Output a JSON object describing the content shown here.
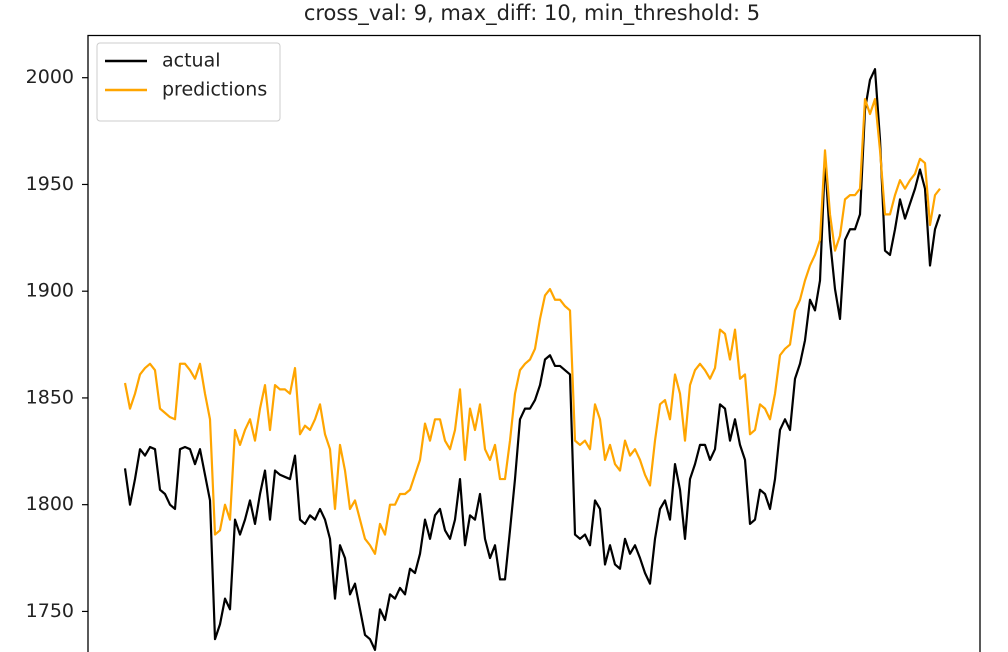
{
  "chart_data": {
    "type": "line",
    "title": "cross_val: 9, max_diff: 10, min_threshold: 5",
    "series": [
      {
        "name": "actual",
        "color": "#000000",
        "values": [
          1817,
          1800,
          1812,
          1826,
          1823,
          1827,
          1826,
          1807,
          1805,
          1800,
          1798,
          1826,
          1827,
          1826,
          1819,
          1826,
          1814,
          1802,
          1737,
          1744,
          1756,
          1751,
          1793,
          1786,
          1793,
          1802,
          1791,
          1805,
          1816,
          1793,
          1816,
          1814,
          1813,
          1812,
          1823,
          1793,
          1791,
          1795,
          1793,
          1798,
          1793,
          1784,
          1756,
          1781,
          1775,
          1758,
          1763,
          1751,
          1739,
          1737,
          1732,
          1751,
          1746,
          1758,
          1756,
          1761,
          1758,
          1770,
          1768,
          1777,
          1793,
          1784,
          1795,
          1798,
          1788,
          1784,
          1793,
          1812,
          1781,
          1795,
          1793,
          1805,
          1784,
          1775,
          1781,
          1765,
          1765,
          1788,
          1812,
          1840,
          1845,
          1845,
          1849,
          1856,
          1868,
          1870,
          1865,
          1865,
          1863,
          1861,
          1786,
          1784,
          1786,
          1781,
          1802,
          1798,
          1772,
          1781,
          1772,
          1770,
          1784,
          1777,
          1781,
          1775,
          1768,
          1763,
          1784,
          1798,
          1802,
          1793,
          1819,
          1807,
          1784,
          1812,
          1819,
          1828,
          1828,
          1821,
          1826,
          1847,
          1845,
          1830,
          1840,
          1828,
          1821,
          1791,
          1793,
          1807,
          1805,
          1798,
          1812,
          1835,
          1840,
          1835,
          1859,
          1866,
          1877,
          1896,
          1891,
          1905,
          1962,
          1924,
          1901,
          1887,
          1924,
          1929,
          1929,
          1936,
          1985,
          1999,
          2004,
          1971,
          1919,
          1917,
          1929,
          1943,
          1934,
          1941,
          1948,
          1957,
          1948,
          1912,
          1929,
          1936
        ]
      },
      {
        "name": "predictions",
        "color": "orange",
        "values": [
          1857,
          1845,
          1852,
          1861,
          1864,
          1866,
          1863,
          1845,
          1843,
          1841,
          1840,
          1866,
          1866,
          1863,
          1859,
          1866,
          1852,
          1840,
          1786,
          1788,
          1800,
          1793,
          1835,
          1828,
          1835,
          1840,
          1830,
          1845,
          1856,
          1835,
          1856,
          1854,
          1854,
          1852,
          1864,
          1833,
          1837,
          1835,
          1840,
          1847,
          1833,
          1826,
          1798,
          1828,
          1816,
          1798,
          1802,
          1793,
          1784,
          1781,
          1777,
          1791,
          1786,
          1800,
          1800,
          1805,
          1805,
          1807,
          1814,
          1821,
          1838,
          1830,
          1840,
          1840,
          1830,
          1826,
          1835,
          1854,
          1821,
          1845,
          1835,
          1847,
          1826,
          1821,
          1828,
          1812,
          1812,
          1830,
          1852,
          1863,
          1866,
          1868,
          1873,
          1887,
          1898,
          1901,
          1896,
          1896,
          1893,
          1891,
          1830,
          1828,
          1830,
          1826,
          1847,
          1840,
          1821,
          1828,
          1819,
          1816,
          1830,
          1823,
          1826,
          1821,
          1814,
          1809,
          1830,
          1847,
          1849,
          1840,
          1861,
          1852,
          1830,
          1856,
          1863,
          1866,
          1863,
          1859,
          1864,
          1882,
          1880,
          1868,
          1882,
          1859,
          1861,
          1833,
          1835,
          1847,
          1845,
          1840,
          1852,
          1870,
          1873,
          1875,
          1891,
          1896,
          1905,
          1912,
          1917,
          1924,
          1966,
          1936,
          1919,
          1926,
          1943,
          1945,
          1945,
          1948,
          1990,
          1983,
          1990,
          1966,
          1936,
          1936,
          1945,
          1952,
          1948,
          1952,
          1955,
          1962,
          1960,
          1931,
          1945,
          1948
        ]
      }
    ],
    "ylim": [
      1731,
      2020
    ],
    "yticks": [
      1750,
      1800,
      1850,
      1900,
      1950,
      2000
    ],
    "legend": "upper left"
  }
}
